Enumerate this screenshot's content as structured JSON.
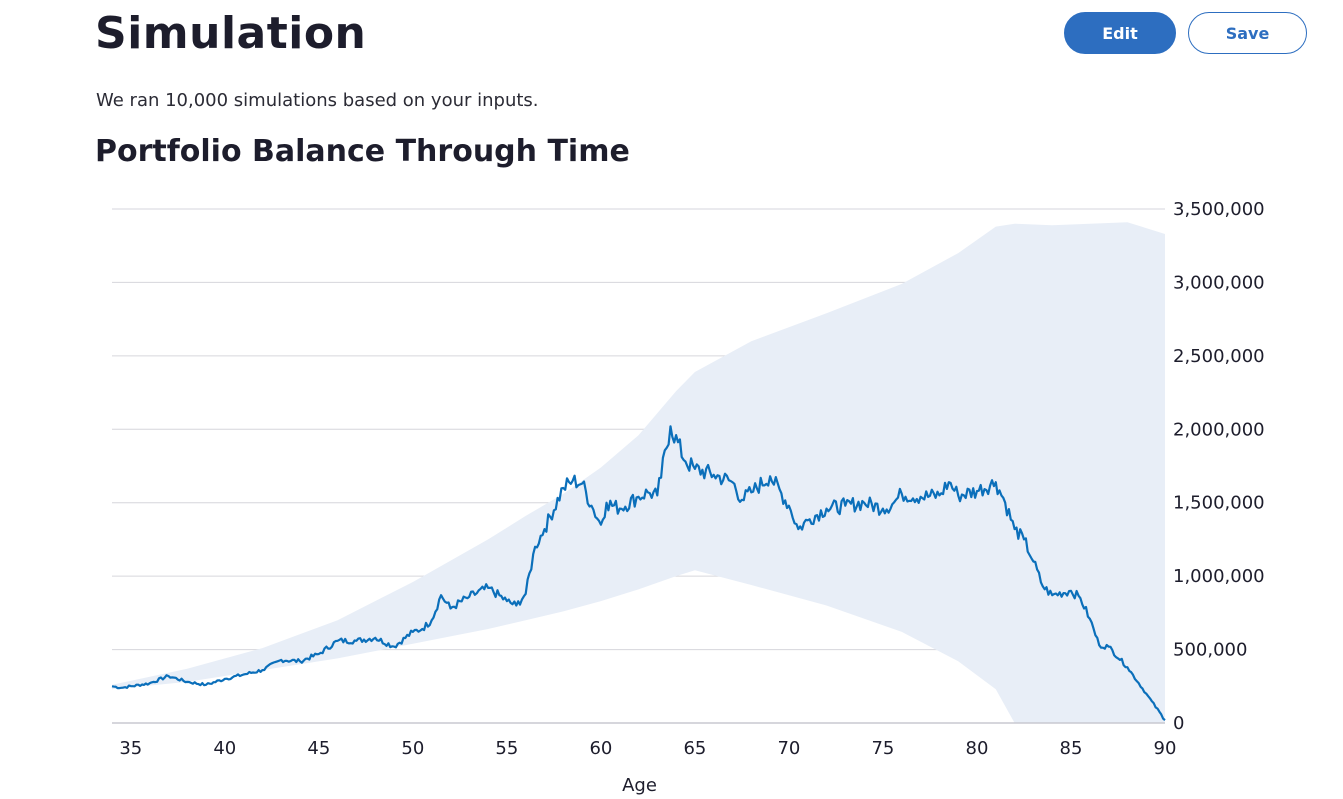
{
  "header": {
    "title": "Simulation",
    "subtitle": "We ran 10,000 simulations based on your inputs.",
    "edit_label": "Edit",
    "save_label": "Save"
  },
  "section": {
    "title": "Portfolio Balance Through Time"
  },
  "colors": {
    "accent": "#2d6ec0",
    "line": "#0b6fba",
    "band": "#e8eef7",
    "grid": "#d6d6dc"
  },
  "chart_data": {
    "type": "line",
    "title": "Portfolio Balance Through Time",
    "xlabel": "Age",
    "ylabel": "",
    "xlim": [
      34,
      90
    ],
    "ylim": [
      0,
      3500000
    ],
    "x_ticks": [
      35,
      40,
      45,
      50,
      55,
      60,
      65,
      70,
      75,
      80,
      85,
      90
    ],
    "y_ticks": [
      0,
      500000,
      1000000,
      1500000,
      2000000,
      2500000,
      3000000,
      3500000
    ],
    "y_tick_labels": [
      "0",
      "500,000",
      "1,000,000",
      "1,500,000",
      "2,000,000",
      "2,500,000",
      "3,000,000",
      "3,500,000"
    ],
    "grid": true,
    "y_axis_side": "right",
    "band": {
      "x": [
        34,
        38,
        42,
        46,
        50,
        54,
        56,
        58,
        60,
        62,
        64,
        65,
        68,
        72,
        76,
        79,
        81,
        82,
        84,
        86,
        88,
        90
      ],
      "upper": [
        260000,
        370000,
        510000,
        700000,
        960000,
        1250000,
        1410000,
        1560000,
        1740000,
        1960000,
        2260000,
        2390000,
        2600000,
        2790000,
        2990000,
        3200000,
        3380000,
        3400000,
        3390000,
        3400000,
        3410000,
        3330000
      ],
      "lower": [
        230000,
        280000,
        360000,
        440000,
        540000,
        640000,
        700000,
        760000,
        830000,
        910000,
        1000000,
        1040000,
        940000,
        800000,
        620000,
        420000,
        230000,
        0,
        0,
        0,
        0,
        0
      ]
    },
    "series": [
      {
        "x": [
          34,
          34.5,
          36,
          37,
          38,
          39,
          40,
          41,
          42,
          43,
          44,
          45,
          46,
          47,
          48,
          49,
          50,
          50.5,
          51,
          51.5,
          52,
          53,
          54,
          55,
          55.5,
          56,
          56.5,
          57,
          58,
          58.5,
          59,
          59.5,
          60,
          60.3,
          61,
          62,
          62.5,
          63,
          63.7,
          64.5,
          65,
          66,
          67,
          67.5,
          68,
          69,
          70,
          70.5,
          71,
          72,
          73,
          74,
          75,
          75.5,
          76,
          77,
          78,
          78.5,
          79,
          80,
          81,
          81.5,
          82,
          82.5,
          83,
          83.5,
          84,
          85,
          85.5,
          86,
          86.5,
          87,
          88,
          89,
          90
        ],
        "values": [
          250000,
          240000,
          270000,
          320000,
          280000,
          260000,
          300000,
          330000,
          360000,
          430000,
          420000,
          470000,
          560000,
          560000,
          580000,
          520000,
          620000,
          640000,
          700000,
          870000,
          780000,
          860000,
          920000,
          830000,
          800000,
          880000,
          1200000,
          1320000,
          1600000,
          1650000,
          1630000,
          1480000,
          1350000,
          1500000,
          1460000,
          1540000,
          1570000,
          1550000,
          2020000,
          1780000,
          1730000,
          1690000,
          1640000,
          1520000,
          1570000,
          1680000,
          1480000,
          1320000,
          1380000,
          1460000,
          1480000,
          1500000,
          1460000,
          1490000,
          1560000,
          1540000,
          1550000,
          1640000,
          1550000,
          1580000,
          1640000,
          1500000,
          1320000,
          1250000,
          1100000,
          930000,
          870000,
          900000,
          850000,
          710000,
          530000,
          520000,
          380000,
          200000,
          20000
        ]
      }
    ]
  }
}
